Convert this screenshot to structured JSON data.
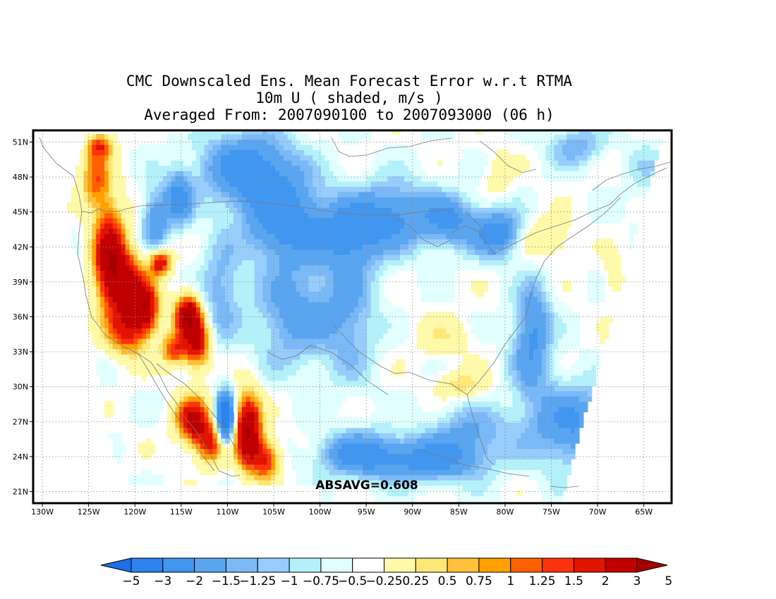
{
  "title": {
    "line1": "CMC Downscaled Ens. Mean Forecast Error w.r.t RTMA",
    "line2": "10m U ( shaded, m/s )",
    "line3": "Averaged From: 2007090100 to 2007093000 (06 h)"
  },
  "absavg": "ABSAVG=0.608",
  "map": {
    "lon_min": -131,
    "lon_max": -62,
    "lat_min": 20,
    "lat_max": 52,
    "lon_ticks": [
      {
        "lon": -130,
        "label": "130W"
      },
      {
        "lon": -125,
        "label": "125W"
      },
      {
        "lon": -120,
        "label": "120W"
      },
      {
        "lon": -115,
        "label": "115W"
      },
      {
        "lon": -110,
        "label": "110W"
      },
      {
        "lon": -105,
        "label": "105W"
      },
      {
        "lon": -100,
        "label": "100W"
      },
      {
        "lon": -95,
        "label": "95W"
      },
      {
        "lon": -90,
        "label": "90W"
      },
      {
        "lon": -85,
        "label": "85W"
      },
      {
        "lon": -80,
        "label": "80W"
      },
      {
        "lon": -75,
        "label": "75W"
      },
      {
        "lon": -70,
        "label": "70W"
      },
      {
        "lon": -65,
        "label": "65W"
      }
    ],
    "lat_ticks": [
      {
        "lat": 21,
        "label": "21N"
      },
      {
        "lat": 24,
        "label": "24N"
      },
      {
        "lat": 27,
        "label": "27N"
      },
      {
        "lat": 30,
        "label": "30N"
      },
      {
        "lat": 33,
        "label": "33N"
      },
      {
        "lat": 36,
        "label": "36N"
      },
      {
        "lat": 39,
        "label": "39N"
      },
      {
        "lat": 42,
        "label": "42N"
      },
      {
        "lat": 45,
        "label": "45N"
      },
      {
        "lat": 48,
        "label": "48N"
      },
      {
        "lat": 51,
        "label": "51N"
      }
    ]
  },
  "colorbar": {
    "colors": [
      "#1e6ee6",
      "#2d82ec",
      "#4196f0",
      "#5aa5f0",
      "#7ab9f5",
      "#96cdfa",
      "#b4f0fa",
      "#e1ffff",
      "#ffffff",
      "#fffaaa",
      "#ffe878",
      "#ffc03c",
      "#ffa000",
      "#ff6000",
      "#ff3210",
      "#e11400",
      "#c00000",
      "#a50000"
    ],
    "labels": [
      "−5",
      "−3",
      "−2",
      "−1.5",
      "−1.25",
      "−1",
      "−0.75",
      "−0.5",
      "−0.25",
      "0.25",
      "0.5",
      "0.75",
      "1",
      "1.25",
      "1.5",
      "2",
      "3",
      "5"
    ]
  },
  "field_anomalies": [
    {
      "lon": -123,
      "lat": 41,
      "v": 3.0,
      "sx": 1.2,
      "sy": 3.0
    },
    {
      "lon": -121,
      "lat": 38.5,
      "v": 2.4,
      "sx": 1.4,
      "sy": 2.0
    },
    {
      "lon": -124.5,
      "lat": 47.5,
      "v": 1.5,
      "sx": 1.2,
      "sy": 1.8
    },
    {
      "lon": -124,
      "lat": 50.5,
      "v": 1.6,
      "sx": 1.0,
      "sy": 0.8
    },
    {
      "lon": -121,
      "lat": 34.5,
      "v": 1.8,
      "sx": 1.5,
      "sy": 1.5
    },
    {
      "lon": -119,
      "lat": 36.5,
      "v": 2.5,
      "sx": 1.0,
      "sy": 1.5
    },
    {
      "lon": -117.5,
      "lat": 40.5,
      "v": 2.6,
      "sx": 0.8,
      "sy": 0.8
    },
    {
      "lon": -114.5,
      "lat": 36,
      "v": 3.2,
      "sx": 1.0,
      "sy": 1.2
    },
    {
      "lon": -113.5,
      "lat": 33.5,
      "v": 2.4,
      "sx": 1.0,
      "sy": 1.5
    },
    {
      "lon": -116,
      "lat": 33,
      "v": 1.8,
      "sx": 1.0,
      "sy": 1.0
    },
    {
      "lon": -114,
      "lat": 27,
      "v": 2.6,
      "sx": 1.3,
      "sy": 1.4
    },
    {
      "lon": -112,
      "lat": 25,
      "v": 2.0,
      "sx": 1.2,
      "sy": 1.3
    },
    {
      "lon": -108,
      "lat": 26,
      "v": 3.5,
      "sx": 1.0,
      "sy": 2.2
    },
    {
      "lon": -106,
      "lat": 23.5,
      "v": 2.0,
      "sx": 1.0,
      "sy": 1.2
    },
    {
      "lon": -110.5,
      "lat": 27,
      "v": -4.0,
      "sx": 0.7,
      "sy": 1.5
    },
    {
      "lon": -115.5,
      "lat": 46,
      "v": -1.8,
      "sx": 1.0,
      "sy": 1.6
    },
    {
      "lon": -118,
      "lat": 44,
      "v": -1.5,
      "sx": 1.0,
      "sy": 2.0
    },
    {
      "lon": -108,
      "lat": 48.5,
      "v": -2.0,
      "sx": 3.5,
      "sy": 2.2
    },
    {
      "lon": -104,
      "lat": 44,
      "v": -2.0,
      "sx": 3.0,
      "sy": 2.5
    },
    {
      "lon": -97,
      "lat": 43,
      "v": -1.6,
      "sx": 2.5,
      "sy": 2.0
    },
    {
      "lon": -92,
      "lat": 44.5,
      "v": -1.6,
      "sx": 3.0,
      "sy": 2.0
    },
    {
      "lon": -86,
      "lat": 44,
      "v": -1.5,
      "sx": 2.0,
      "sy": 1.5
    },
    {
      "lon": -81,
      "lat": 43,
      "v": -2.0,
      "sx": 1.8,
      "sy": 1.4
    },
    {
      "lon": -103,
      "lat": 36,
      "v": -1.3,
      "sx": 3.0,
      "sy": 3.0
    },
    {
      "lon": -97,
      "lat": 36,
      "v": -1.0,
      "sx": 2.0,
      "sy": 4.0
    },
    {
      "lon": -111,
      "lat": 38,
      "v": -1.0,
      "sx": 1.5,
      "sy": 3.0
    },
    {
      "lon": -96,
      "lat": 24,
      "v": -1.8,
      "sx": 3.0,
      "sy": 1.3
    },
    {
      "lon": -88,
      "lat": 23.5,
      "v": -1.8,
      "sx": 4.0,
      "sy": 1.3
    },
    {
      "lon": -84,
      "lat": 26,
      "v": -1.0,
      "sx": 3.0,
      "sy": 1.5
    },
    {
      "lon": -73,
      "lat": 26.5,
      "v": -1.6,
      "sx": 3.5,
      "sy": 2.5
    },
    {
      "lon": -77.5,
      "lat": 33,
      "v": -1.2,
      "sx": 1.5,
      "sy": 3.0
    },
    {
      "lon": -72.5,
      "lat": 50.5,
      "v": -1.0,
      "sx": 2.0,
      "sy": 1.2
    },
    {
      "lon": -77,
      "lat": 36,
      "v": -0.8,
      "sx": 1.2,
      "sy": 2.5
    },
    {
      "lon": -87,
      "lat": 34,
      "v": 0.6,
      "sx": 2.0,
      "sy": 1.2
    },
    {
      "lon": -85,
      "lat": 30,
      "v": 0.9,
      "sx": 1.8,
      "sy": 0.8
    },
    {
      "lon": -76,
      "lat": 42.5,
      "v": 0.8,
      "sx": 2.0,
      "sy": 1.2
    },
    {
      "lon": -81,
      "lat": 48,
      "v": 0.5,
      "sx": 1.0,
      "sy": 1.5
    },
    {
      "lon": -68.5,
      "lat": 39,
      "v": 0.5,
      "sx": 0.8,
      "sy": 1.4
    },
    {
      "lon": -69,
      "lat": 32,
      "v": 0.5,
      "sx": 0.8,
      "sy": 1.2
    },
    {
      "lon": -65,
      "lat": 48,
      "v": -0.4,
      "sx": 1.5,
      "sy": 2.5
    }
  ]
}
